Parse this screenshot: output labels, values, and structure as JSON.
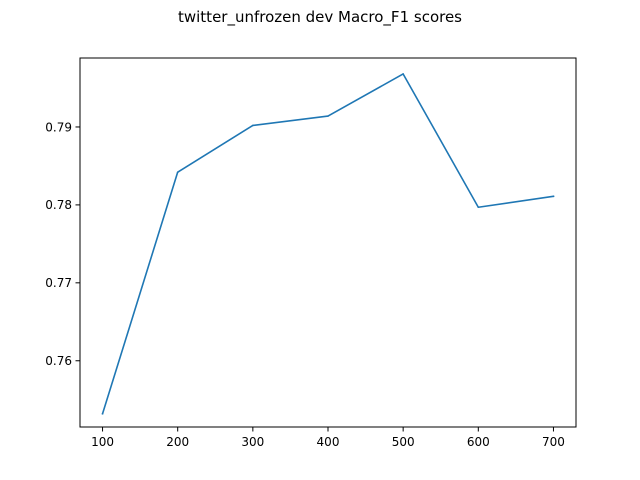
{
  "chart_data": {
    "type": "line",
    "title": "twitter_unfrozen dev Macro_F1 scores",
    "xlabel": "",
    "ylabel": "",
    "x": [
      100,
      200,
      300,
      400,
      500,
      600,
      700
    ],
    "series": [
      {
        "values": [
          0.7532,
          0.7842,
          0.7902,
          0.7914,
          0.7968,
          0.7797,
          0.7811
        ],
        "color": "#1f77b4"
      }
    ],
    "xlim": [
      70,
      730
    ],
    "ylim": [
      0.7515,
      0.79885
    ],
    "xticks": [
      100,
      200,
      300,
      400,
      500,
      600,
      700
    ],
    "xtick_labels": [
      "100",
      "200",
      "300",
      "400",
      "500",
      "600",
      "700"
    ],
    "yticks": [
      0.76,
      0.77,
      0.78,
      0.79
    ],
    "ytick_labels": [
      "0.76",
      "0.77",
      "0.78",
      "0.79"
    ],
    "grid": false,
    "legend": "none"
  }
}
